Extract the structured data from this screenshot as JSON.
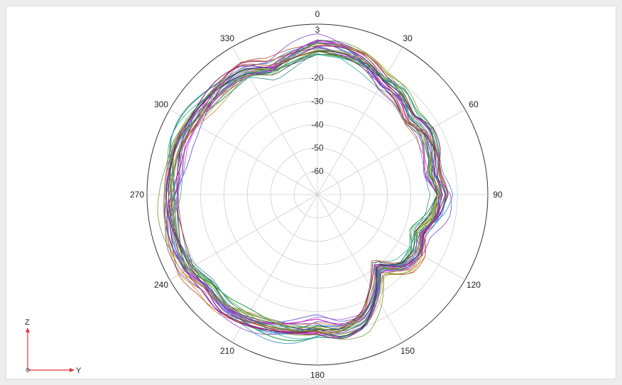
{
  "chart_data": {
    "type": "polar-line",
    "angle_ticks": [
      "0",
      "30",
      "60",
      "90",
      "120",
      "150",
      "180",
      "210",
      "240",
      "270",
      "300",
      "330"
    ],
    "radial_ticks": [
      "3",
      "-20",
      "-30",
      "-40",
      "-50",
      "-60"
    ],
    "r_range": [
      -70,
      3
    ],
    "grid": true,
    "series_count": 30,
    "series_colors": [
      "#d11ad1",
      "#7b2fbf",
      "#3a3ad6",
      "#1f7fbf",
      "#1fa3a3",
      "#27a34a",
      "#7aa31f",
      "#b0a21f",
      "#c97a1a",
      "#b33a1a",
      "#8c1a8c",
      "#2b2b2b",
      "#5a8f2a",
      "#2a7f8f",
      "#9a4fd0"
    ],
    "envelope": {
      "angles": [
        0,
        10,
        20,
        30,
        40,
        50,
        60,
        70,
        80,
        90,
        100,
        110,
        120,
        130,
        140,
        150,
        160,
        170,
        180,
        190,
        200,
        210,
        220,
        230,
        240,
        250,
        260,
        270,
        280,
        290,
        300,
        310,
        320,
        330,
        340,
        350,
        360
      ],
      "values": [
        -5,
        -6,
        -8,
        -12,
        -13,
        -17,
        -15,
        -16,
        -18,
        -15,
        -17,
        -22,
        -19,
        -20,
        -28,
        -19,
        -11,
        -9,
        -11,
        -9,
        -8,
        -7,
        -6,
        -7,
        -4,
        -4,
        -5,
        -6,
        -6,
        -5,
        -6,
        -7,
        -7,
        -7,
        -11,
        -8,
        -5
      ]
    }
  },
  "axes_indicator": {
    "z_label": "Z",
    "y_label": "Y"
  },
  "colors": {
    "grid": "#cfcfcf",
    "outer_circle": "#333333",
    "axis_indicator": "#e8343a"
  }
}
